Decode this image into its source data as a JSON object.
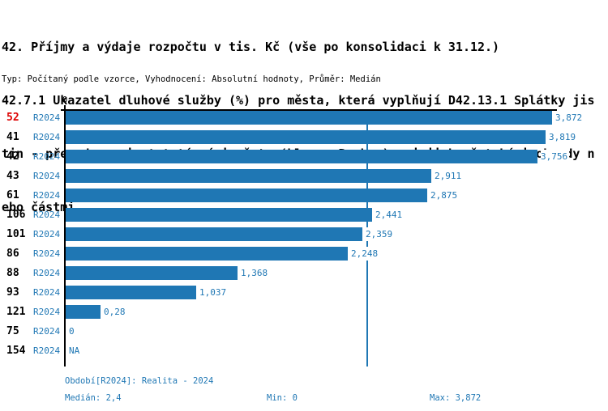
{
  "header": {
    "title_lines": [
      "42. Příjmy a výdaje rozpočtu v tis. Kč (vše po konsolidaci k 31.12.)",
      "42.7.1 Ukazatel dluhové služby (%) pro města, která vyplňují D42.13.1 Splátky jis",
      "tin - převody mezi statutárními městy (hl. m. Prahou) a jejich městskými obvody n",
      "ebo částmi"
    ],
    "meta_line": "Typ: Počítaný podle vzorce, Vyhodnocení: Absolutní hodnoty, Průměr: Medián"
  },
  "chart_data": {
    "type": "bar",
    "orientation": "horizontal",
    "title": "42.7.1 Ukazatel dluhové služby (%)",
    "xlabel": "",
    "ylabel": "",
    "xlim": [
      0,
      3.872
    ],
    "axis": {
      "zero_tick_label": "0"
    },
    "legend_position": "none",
    "grid": false,
    "median_reference_line": 2.4,
    "categories": [
      "52",
      "41",
      "42",
      "43",
      "61",
      "106",
      "101",
      "86",
      "88",
      "93",
      "121",
      "75",
      "154"
    ],
    "series": [
      {
        "name": "R2024",
        "values": [
          3.872,
          3.819,
          3.756,
          2.911,
          2.875,
          2.441,
          2.359,
          2.248,
          1.368,
          1.037,
          0.28,
          0,
          null
        ]
      }
    ],
    "rows": [
      {
        "id": "52",
        "period": "R2024",
        "value": 3.872,
        "value_label": "3,872",
        "highlight": true
      },
      {
        "id": "41",
        "period": "R2024",
        "value": 3.819,
        "value_label": "3,819",
        "highlight": false
      },
      {
        "id": "42",
        "period": "R2024",
        "value": 3.756,
        "value_label": "3,756",
        "highlight": false
      },
      {
        "id": "43",
        "period": "R2024",
        "value": 2.911,
        "value_label": "2,911",
        "highlight": false
      },
      {
        "id": "61",
        "period": "R2024",
        "value": 2.875,
        "value_label": "2,875",
        "highlight": false
      },
      {
        "id": "106",
        "period": "R2024",
        "value": 2.441,
        "value_label": "2,441",
        "highlight": false
      },
      {
        "id": "101",
        "period": "R2024",
        "value": 2.359,
        "value_label": "2,359",
        "highlight": false
      },
      {
        "id": "86",
        "period": "R2024",
        "value": 2.248,
        "value_label": "2,248",
        "highlight": false
      },
      {
        "id": "88",
        "period": "R2024",
        "value": 1.368,
        "value_label": "1,368",
        "highlight": false
      },
      {
        "id": "93",
        "period": "R2024",
        "value": 1.037,
        "value_label": "1,037",
        "highlight": false
      },
      {
        "id": "121",
        "period": "R2024",
        "value": 0.28,
        "value_label": "0,28",
        "highlight": false
      },
      {
        "id": "75",
        "period": "R2024",
        "value": 0,
        "value_label": "0",
        "highlight": false
      },
      {
        "id": "154",
        "period": "R2024",
        "value": null,
        "value_label": "NA",
        "highlight": false
      }
    ]
  },
  "footer": {
    "period_line": "Období[R2024]: Realita - 2024",
    "median_label": "Medián: 2,4",
    "min_label": "Min: 0",
    "max_label": "Max: 3,872"
  },
  "colors": {
    "bar": "#1f77b4",
    "blue_text": "#1f77b4",
    "highlight_red": "#dd0000",
    "axis": "#000000"
  }
}
